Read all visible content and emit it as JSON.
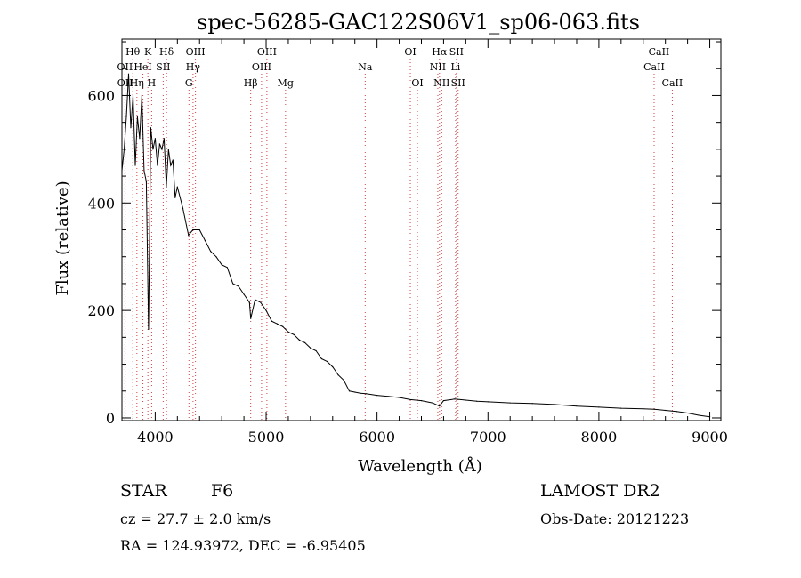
{
  "chart_data": {
    "type": "line",
    "title": "spec-56285-GAC122S06V1_sp06-063.fits",
    "xlabel": "Wavelength (Å)",
    "ylabel": "Flux (relative)",
    "xlim": [
      3700,
      9100
    ],
    "ylim": [
      -5,
      705
    ],
    "x_ticks": [
      4000,
      5000,
      6000,
      7000,
      8000,
      9000
    ],
    "x_tick_labels": [
      "4000",
      "5000",
      "6000",
      "7000",
      "8000",
      "9000"
    ],
    "y_ticks": [
      0,
      200,
      400,
      600
    ],
    "y_tick_labels": [
      "0",
      "200",
      "400",
      "600"
    ],
    "grid": false,
    "series": [
      {
        "x": [
          3700,
          3720,
          3740,
          3760,
          3780,
          3800,
          3820,
          3840,
          3860,
          3880,
          3900,
          3920,
          3940,
          3960,
          3980,
          4000,
          4020,
          4040,
          4060,
          4080,
          4100,
          4120,
          4140,
          4160,
          4180,
          4200,
          4250,
          4300,
          4340,
          4400,
          4450,
          4500,
          4550,
          4600,
          4650,
          4700,
          4750,
          4800,
          4850,
          4861,
          4900,
          4950,
          5000,
          5050,
          5100,
          5150,
          5200,
          5250,
          5300,
          5350,
          5400,
          5450,
          5500,
          5550,
          5600,
          5650,
          5700,
          5750,
          5800,
          5850,
          5900,
          6000,
          6100,
          6200,
          6300,
          6400,
          6500,
          6563,
          6600,
          6700,
          6800,
          6900,
          7000,
          7200,
          7400,
          7600,
          7800,
          8000,
          8200,
          8400,
          8500,
          8600,
          8700,
          8800,
          8900,
          9000
        ],
        "y": [
          460,
          500,
          560,
          640,
          540,
          600,
          470,
          560,
          520,
          600,
          460,
          440,
          165,
          540,
          500,
          520,
          470,
          510,
          500,
          520,
          430,
          500,
          470,
          480,
          410,
          430,
          390,
          340,
          350,
          350,
          330,
          310,
          300,
          285,
          280,
          250,
          245,
          230,
          215,
          185,
          220,
          215,
          200,
          180,
          175,
          170,
          160,
          155,
          145,
          140,
          130,
          125,
          110,
          105,
          95,
          80,
          70,
          50,
          48,
          46,
          45,
          42,
          40,
          38,
          34,
          32,
          28,
          22,
          32,
          35,
          33,
          31,
          30,
          28,
          27,
          25,
          22,
          20,
          18,
          17,
          16,
          14,
          12,
          9,
          5,
          2
        ]
      }
    ],
    "line_markers": [
      {
        "label": "Hθ",
        "x": 3798,
        "row": 0
      },
      {
        "label": "K",
        "x": 3934,
        "row": 0
      },
      {
        "label": "Hδ",
        "x": 4102,
        "row": 0
      },
      {
        "label": "OIII",
        "x": 4363,
        "row": 0
      },
      {
        "label": "OIII",
        "x": 5007,
        "row": 0
      },
      {
        "label": "OI",
        "x": 6300,
        "row": 0
      },
      {
        "label": "Hα",
        "x": 6563,
        "row": 0
      },
      {
        "label": "SII",
        "x": 6716,
        "row": 0
      },
      {
        "label": "CaII",
        "x": 8542,
        "row": 0
      },
      {
        "label": "OII",
        "x": 3727,
        "row": 1
      },
      {
        "label": "HeI",
        "x": 3889,
        "row": 1
      },
      {
        "label": "SII",
        "x": 4072,
        "row": 1
      },
      {
        "label": "Hγ",
        "x": 4341,
        "row": 1
      },
      {
        "label": "OIII",
        "x": 4959,
        "row": 1
      },
      {
        "label": "NII",
        "x": 6548,
        "row": 1
      },
      {
        "label": "Li",
        "x": 6708,
        "row": 1
      },
      {
        "label": "CaII",
        "x": 8498,
        "row": 1
      },
      {
        "label": "OII",
        "x": 3729,
        "row": 2
      },
      {
        "label": "Hη",
        "x": 3835,
        "row": 2
      },
      {
        "label": "H",
        "x": 3968,
        "row": 2
      },
      {
        "label": "G",
        "x": 4304,
        "row": 2
      },
      {
        "label": "Hβ",
        "x": 4861,
        "row": 2
      },
      {
        "label": "Mg",
        "x": 5175,
        "row": 2
      },
      {
        "label": "Na",
        "x": 5893,
        "row": 1
      },
      {
        "label": "OI",
        "x": 6364,
        "row": 2
      },
      {
        "label": "NII",
        "x": 6583,
        "row": 2
      },
      {
        "label": "SII",
        "x": 6731,
        "row": 2
      },
      {
        "label": "CaII",
        "x": 8662,
        "row": 2
      }
    ]
  },
  "info": {
    "class_label": "STAR",
    "subclass_label": "F6",
    "survey": "LAMOST DR2",
    "cz": "cz = 27.7 ± 2.0 km/s",
    "obs_date": "Obs-Date: 20121223",
    "coords": "RA = 124.93972, DEC =  -6.95405"
  },
  "colors": {
    "foreground": "#000000",
    "marker_line": "#d04040",
    "background": "#ffffff"
  }
}
